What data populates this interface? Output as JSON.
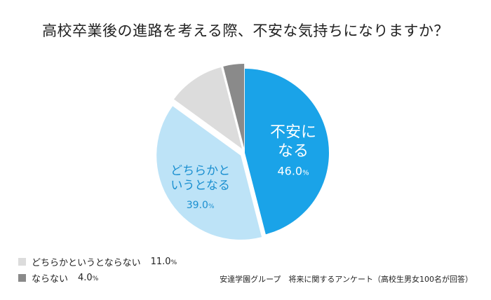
{
  "chart_data": {
    "type": "pie",
    "title": "高校卒業後の進路を考える際、不安な気持ちになりますか？",
    "slices": [
      {
        "name": "不安になる",
        "value": 46.0,
        "color": "#1aa3e8",
        "label_lines": [
          "不安に",
          "なる"
        ],
        "value_label": "46.0",
        "label_color": "#ffffff",
        "exploded": false
      },
      {
        "name": "どちらかというとなる",
        "value": 39.0,
        "color": "#bde3f7",
        "label_lines": [
          "どちらかと",
          "いうとなる"
        ],
        "value_label": "39.0",
        "label_color": "#1a8fd0",
        "exploded": true
      },
      {
        "name": "どちらかというとならない",
        "value": 11.0,
        "color": "#dcdcdc",
        "label_lines": [],
        "value_label": "",
        "exploded": true
      },
      {
        "name": "ならない",
        "value": 4.0,
        "color": "#8a8a8a",
        "label_lines": [],
        "value_label": "",
        "exploded": true
      }
    ],
    "percent_suffix": "%",
    "legend": [
      {
        "label": "どちらかというとならない",
        "value": "11.0",
        "color": "#dcdcdc"
      },
      {
        "label": "ならない",
        "value": "4.0",
        "color": "#8a8a8a"
      }
    ],
    "source": "安達学園グループ　将来に関するアンケート（高校生男女100名が回答）"
  }
}
